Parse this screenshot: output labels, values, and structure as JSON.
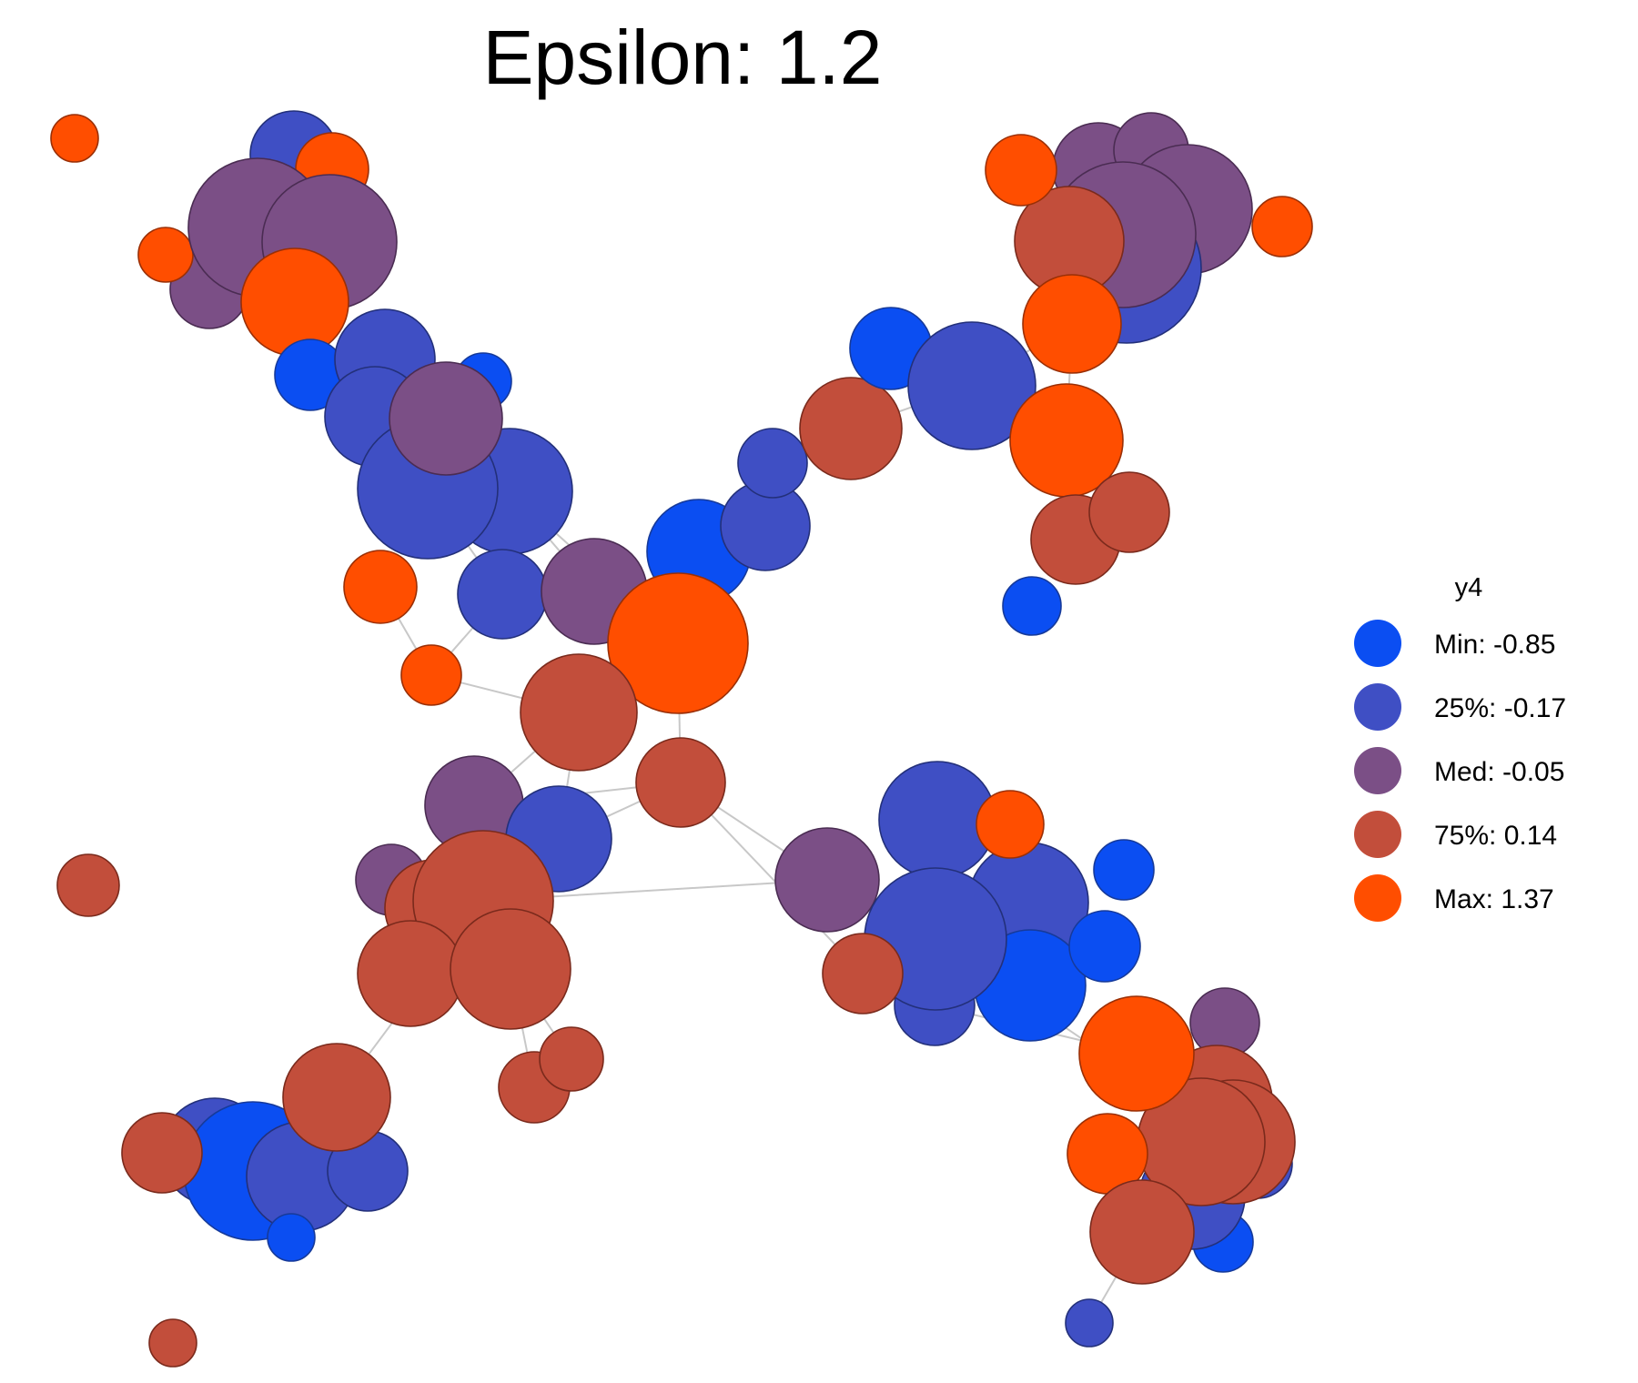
{
  "title": "Epsilon: 1.2",
  "legend": {
    "title": "y4",
    "items": [
      {
        "label": "Min: -0.85",
        "color": "#0b4ef2"
      },
      {
        "label": "25%: -0.17",
        "color": "#3f4fc4"
      },
      {
        "label": "Med: -0.05",
        "color": "#7b4f86"
      },
      {
        "label": "75%: 0.14",
        "color": "#c24e3b"
      },
      {
        "label": "Max: 1.37",
        "color": "#ff4e00"
      }
    ]
  },
  "color_scale": {
    "min": -0.85,
    "q25": -0.17,
    "median": -0.05,
    "q75": 0.14,
    "max": 1.37
  }
}
